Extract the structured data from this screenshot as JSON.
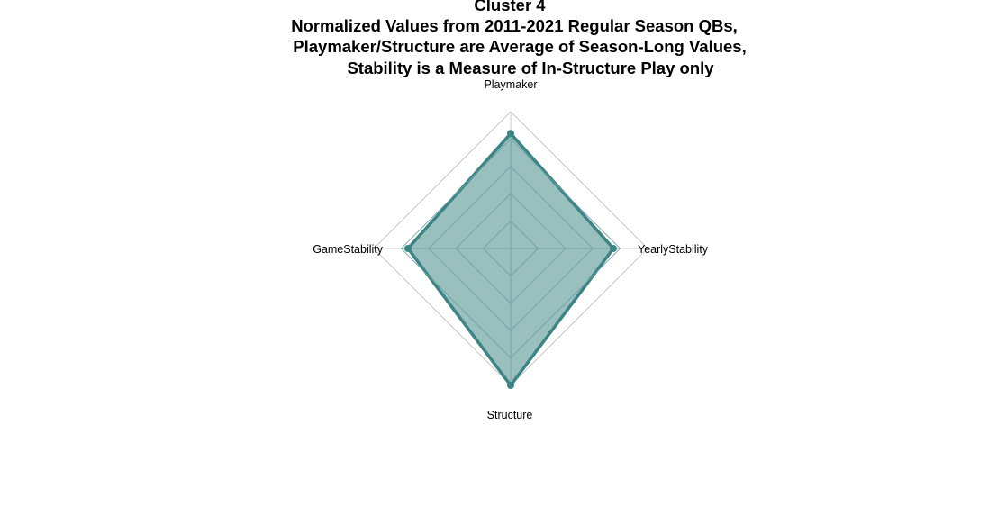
{
  "chart_data": {
    "type": "radar",
    "title_lines": [
      "Cluster 4",
      "Normalized Values from 2011-2021 Regular Season QBs,",
      "Playmaker/Structure are Average of Season-Long Values,",
      "Stability is a Measure of In-Structure Play only"
    ],
    "axes": [
      "Playmaker",
      "YearlyStability",
      "Structure",
      "GameStability"
    ],
    "range": [
      0,
      1
    ],
    "grid_levels": 5,
    "series": [
      {
        "values": [
          0.84,
          0.75,
          1.0,
          0.75
        ]
      }
    ],
    "colors": {
      "line": "#3d8585",
      "fill": "#3d8585",
      "grid": "#bdbdbd",
      "inner_grid": "#6fa5a5"
    }
  }
}
